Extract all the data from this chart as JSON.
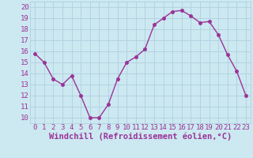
{
  "x": [
    0,
    1,
    2,
    3,
    4,
    5,
    6,
    7,
    8,
    9,
    10,
    11,
    12,
    13,
    14,
    15,
    16,
    17,
    18,
    19,
    20,
    21,
    22,
    23
  ],
  "y": [
    15.8,
    15.0,
    13.5,
    13.0,
    13.8,
    12.0,
    10.0,
    10.0,
    11.2,
    13.5,
    15.0,
    15.5,
    16.2,
    18.4,
    19.0,
    19.6,
    19.7,
    19.2,
    18.6,
    18.7,
    17.5,
    15.7,
    14.2,
    12.0
  ],
  "line_color": "#993399",
  "marker": "o",
  "marker_size": 2.5,
  "bg_color": "#cce8f0",
  "grid_color": "#aaccdd",
  "xlabel": "Windchill (Refroidissement éolien,°C)",
  "xlabel_color": "#993399",
  "tick_color": "#993399",
  "ylim": [
    9.5,
    20.5
  ],
  "xlim": [
    -0.5,
    23.5
  ],
  "yticks": [
    10,
    11,
    12,
    13,
    14,
    15,
    16,
    17,
    18,
    19,
    20
  ],
  "xticks": [
    0,
    1,
    2,
    3,
    4,
    5,
    6,
    7,
    8,
    9,
    10,
    11,
    12,
    13,
    14,
    15,
    16,
    17,
    18,
    19,
    20,
    21,
    22,
    23
  ],
  "tick_font_size": 6.5,
  "xlabel_font_size": 7.5
}
